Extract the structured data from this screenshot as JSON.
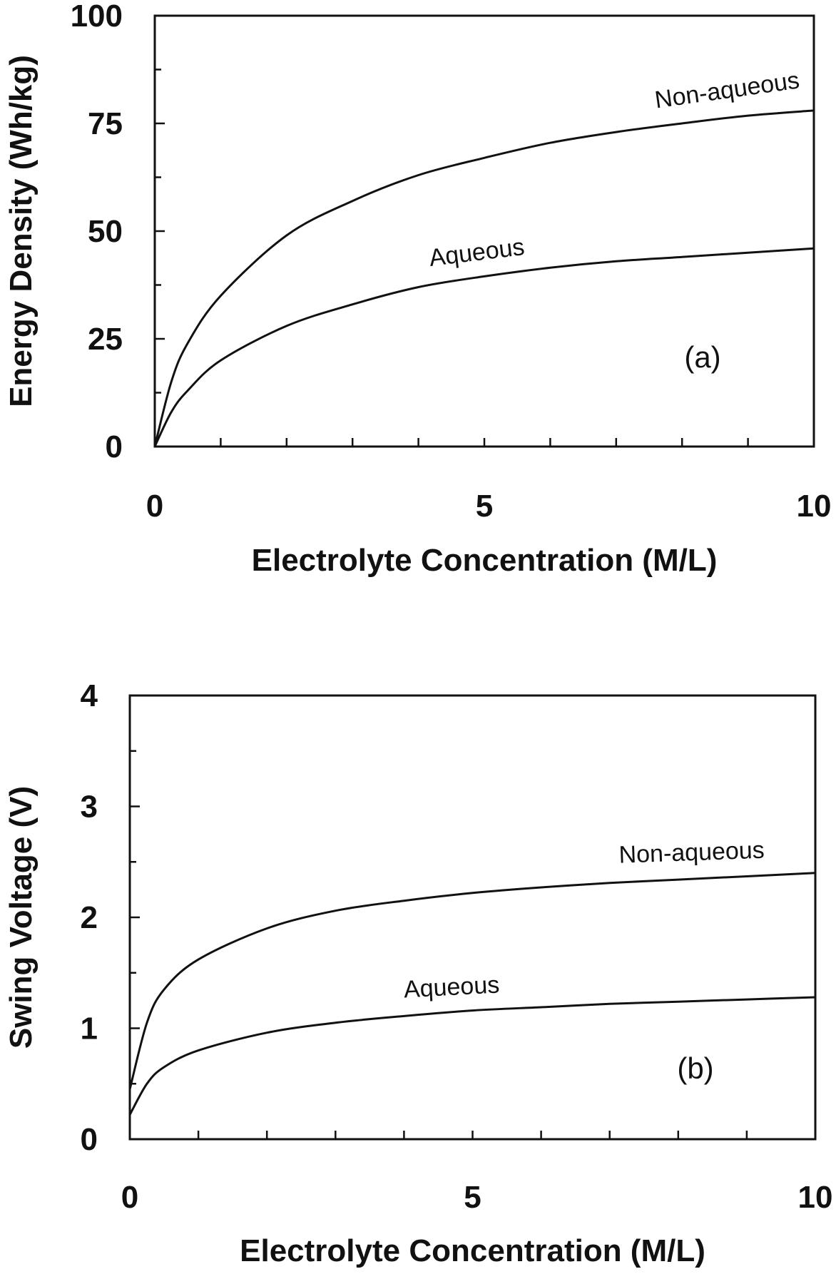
{
  "chart_data": [
    {
      "type": "line",
      "panel_label": "(a)",
      "xlabel": "Electrolyte Concentration (M/L)",
      "ylabel": "Energy Density (Wh/kg)",
      "xlim": [
        0,
        10
      ],
      "ylim": [
        0,
        100
      ],
      "xticks": [
        "0",
        "5",
        "10"
      ],
      "yticks": [
        "0",
        "25",
        "50",
        "75",
        "100"
      ],
      "x": [
        0,
        0.25,
        0.5,
        1,
        2,
        3,
        4,
        5,
        6,
        7,
        8,
        9,
        10
      ],
      "series": [
        {
          "name": "Non-aqueous",
          "values": [
            0,
            15,
            24,
            35,
            49,
            57,
            63,
            67,
            70.5,
            73,
            75,
            76.8,
            78
          ]
        },
        {
          "name": "Aqueous",
          "values": [
            0,
            8,
            13,
            20,
            28,
            33,
            37,
            39.5,
            41.5,
            43,
            44,
            45,
            46
          ]
        }
      ],
      "grid": false
    },
    {
      "type": "line",
      "panel_label": "(b)",
      "xlabel": "Electrolyte Concentration (M/L)",
      "ylabel": "Swing Voltage (V)",
      "xlim": [
        0,
        10
      ],
      "ylim": [
        0,
        4
      ],
      "xticks": [
        "0",
        "5",
        "10"
      ],
      "yticks": [
        "0",
        "1",
        "2",
        "3",
        "4"
      ],
      "x": [
        0,
        0.25,
        0.5,
        1,
        2,
        3,
        4,
        5,
        6,
        7,
        8,
        9,
        10
      ],
      "series": [
        {
          "name": "Non-aqueous",
          "values": [
            0.45,
            1.05,
            1.35,
            1.62,
            1.9,
            2.06,
            2.15,
            2.22,
            2.27,
            2.31,
            2.34,
            2.37,
            2.4
          ]
        },
        {
          "name": "Aqueous",
          "values": [
            0.22,
            0.5,
            0.65,
            0.8,
            0.96,
            1.05,
            1.11,
            1.16,
            1.19,
            1.22,
            1.24,
            1.26,
            1.28
          ]
        }
      ],
      "grid": false
    }
  ]
}
